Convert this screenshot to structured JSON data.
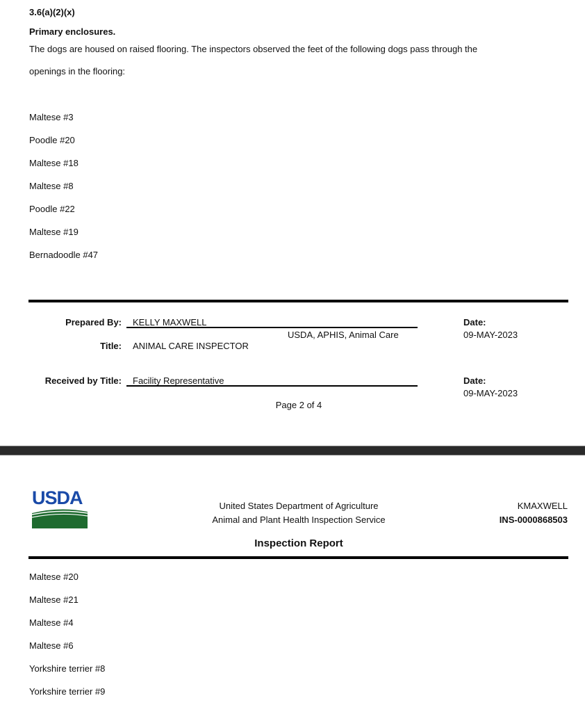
{
  "page1": {
    "section_code": "3.6(a)(2)(x)",
    "section_title": "Primary enclosures.",
    "narrative_line1": "The dogs are housed on raised flooring.  The inspectors observed the feet of the following dogs pass through the",
    "narrative_line2": "openings in the flooring:",
    "dogs": [
      "Maltese #3",
      "Poodle #20",
      "Maltese #18",
      "Maltese #8",
      "Poodle #22",
      "Maltese #19",
      "Bernadoodle #47"
    ],
    "footer": {
      "prepared_by_label": "Prepared By:",
      "prepared_by": "KELLY MAXWELL",
      "agency": "USDA, APHIS, Animal Care",
      "title_label": "Title:",
      "title": "ANIMAL CARE INSPECTOR",
      "date_label": "Date:",
      "date": "09-MAY-2023",
      "received_label": "Received by Title:",
      "received": "Facility Representative",
      "date2_label": "Date:",
      "date2": "09-MAY-2023",
      "page": "Page 2 of 4"
    }
  },
  "page2": {
    "header": {
      "logo_text": "USDA",
      "dept": "United States Department of Agriculture",
      "service": "Animal and Plant Health Inspection Service",
      "user": "KMAXWELL",
      "inspection_id": "INS-0000868503",
      "report_title": "Inspection Report"
    },
    "dogs": [
      "Maltese #20",
      "Maltese #21",
      "Maltese #4",
      "Maltese #6",
      "Yorkshire terrier #8",
      "Yorkshire terrier #9"
    ]
  },
  "colors": {
    "usda_blue": "#1a4aa8",
    "usda_green": "#1e6b2f"
  }
}
